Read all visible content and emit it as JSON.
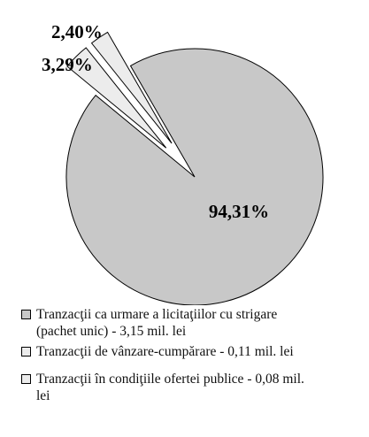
{
  "chart_data": {
    "type": "pie",
    "categories": [
      "Tranzacţii ca urmare a licitaţiilor cu strigare (pachet unic) - 3,15 mil. lei",
      "Tranzacţii de vânzare-cumpărare - 0,11 mil. lei",
      "Tranzacţii în condiţiile ofertei publice - 0,08 mil. lei"
    ],
    "values": [
      94.31,
      3.29,
      2.4
    ],
    "value_labels": [
      "94,31%",
      "3,29%",
      "2,40%"
    ],
    "colors": [
      "#c8c8c8",
      "#ececec",
      "#ececec"
    ]
  }
}
